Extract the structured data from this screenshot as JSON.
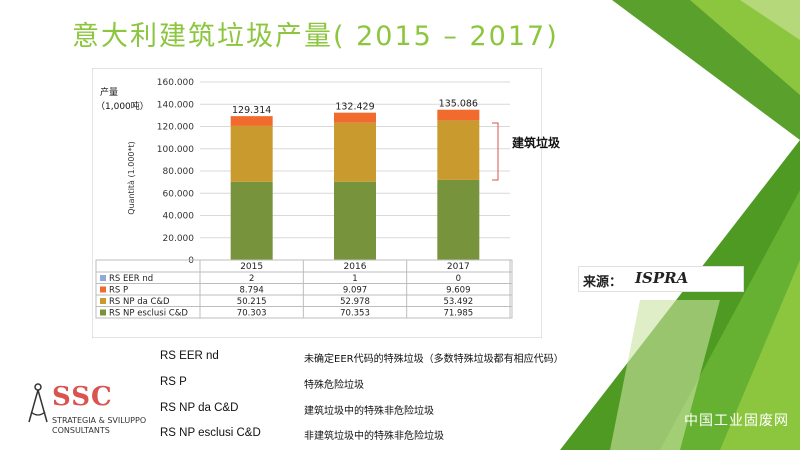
{
  "slide": {
    "title": "意大利建筑垃圾产量( 2015 – 2017)",
    "source_label": "来源：",
    "source_value": "ISPRA",
    "watermark": "中国工业固废网",
    "logo": {
      "mark": "SSC",
      "line1": "STRATEGIA & SVILUPPO",
      "line2": "CONSULTANTS"
    },
    "annotation": "建筑垃圾",
    "colors": {
      "accent_green": "#8cc63f",
      "dark_green": "#4a9a2a"
    },
    "legend_rows": [
      {
        "code": "RS EER nd",
        "desc": "未确定EER代码的特殊垃圾（多数特殊垃圾都有相应代码）"
      },
      {
        "code": "RS P",
        "desc": "特殊危险垃圾"
      },
      {
        "code": "RS NP da C&D",
        "desc": "建筑垃圾中的特殊非危险垃圾"
      },
      {
        "code": "RS NP esclusi C&D",
        "desc": "非建筑垃圾中的特殊非危险垃圾"
      }
    ]
  },
  "chart_data": {
    "type": "bar",
    "stacked": true,
    "unit_label_line1": "产量",
    "unit_label_line2": "（1,000吨）",
    "ylabel": "Quantità (1.000*t)",
    "ylim": [
      0,
      160
    ],
    "yticks": [
      "0",
      "20.000",
      "40.000",
      "60.000",
      "80.000",
      "100.000",
      "120.000",
      "140.000",
      "160.000"
    ],
    "grid": true,
    "categories": [
      "2015",
      "2016",
      "2017"
    ],
    "totals": [
      "129.314",
      "132.429",
      "135.086"
    ],
    "series": [
      {
        "name": "RS EER nd",
        "color": "#8ea9db",
        "values": [
          0.002,
          0.001,
          0
        ],
        "labels": [
          "2",
          "1",
          "0"
        ]
      },
      {
        "name": "RS P",
        "color": "#f26b2e",
        "values": [
          8.794,
          9.097,
          9.609
        ],
        "labels": [
          "8.794",
          "9.097",
          "9.609"
        ]
      },
      {
        "name": "RS NP da C&D",
        "color": "#c99a2e",
        "values": [
          50.215,
          52.978,
          53.492
        ],
        "labels": [
          "50.215",
          "52.978",
          "53.492"
        ]
      },
      {
        "name": "RS NP esclusi C&D",
        "color": "#77933c",
        "values": [
          70.303,
          70.353,
          71.985
        ],
        "labels": [
          "70.303",
          "70.353",
          "71.985"
        ]
      }
    ]
  }
}
